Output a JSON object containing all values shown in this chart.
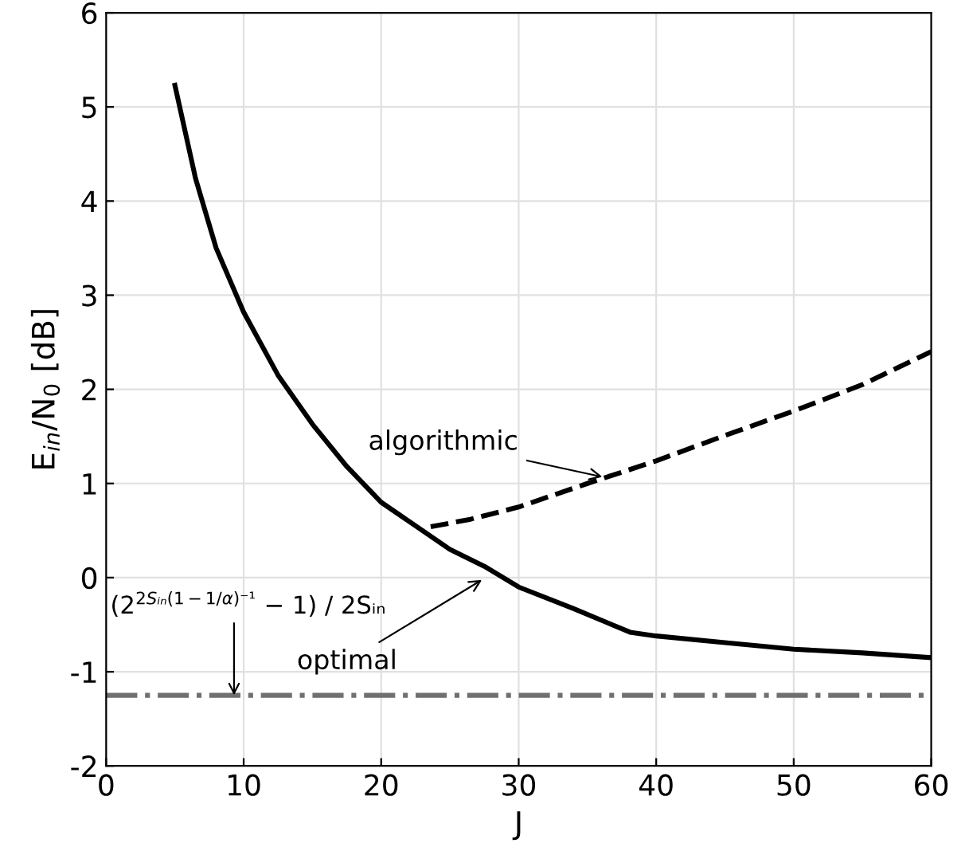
{
  "chart_data": {
    "type": "line",
    "xlabel": "J",
    "ylabel": "E$_{in}$/N$_{0}$ [dB]",
    "xlim": [
      0,
      60
    ],
    "ylim": [
      -2,
      6
    ],
    "xticks": [
      0,
      10,
      20,
      30,
      40,
      50,
      60
    ],
    "yticks": [
      -2,
      -1,
      0,
      1,
      2,
      3,
      4,
      5,
      6
    ],
    "grid": true,
    "legend": false,
    "marker": "none",
    "series": [
      {
        "color": "#000000",
        "line_style": "solid",
        "x": [
          5,
          6.5,
          8,
          10,
          12.5,
          15,
          17.5,
          20,
          22,
          25,
          27.5,
          30,
          34,
          38.1,
          40,
          45,
          50,
          55,
          60
        ],
        "values": [
          5.23,
          4.24,
          3.5,
          2.82,
          2.15,
          1.63,
          1.18,
          0.8,
          0.6,
          0.3,
          0.12,
          -0.1,
          -0.33,
          -0.58,
          -0.62,
          -0.69,
          -0.76,
          -0.8,
          -0.85
        ]
      },
      {
        "color": "#000000",
        "line_style": "dashed",
        "x": [
          23.6,
          26.5,
          30,
          35,
          40,
          45,
          50,
          55,
          60
        ],
        "values": [
          0.54,
          0.62,
          0.75,
          1.0,
          1.24,
          1.51,
          1.77,
          2.05,
          2.4
        ]
      }
    ],
    "ref_lines": [
      {
        "axis": "y",
        "value": -1.25,
        "label": "(2$^{2Sᵢₙ(1−1/α)⁻¹}$ − 1) / 2Sᵢₙ",
        "color": "#707070",
        "line_style": "dashdot"
      }
    ],
    "annotations": [
      {
        "text": "algorithmic",
        "x": 36.4,
        "y": 1.06
      },
      {
        "text": "optimal",
        "x": 27.6,
        "y": 0.0
      }
    ]
  }
}
